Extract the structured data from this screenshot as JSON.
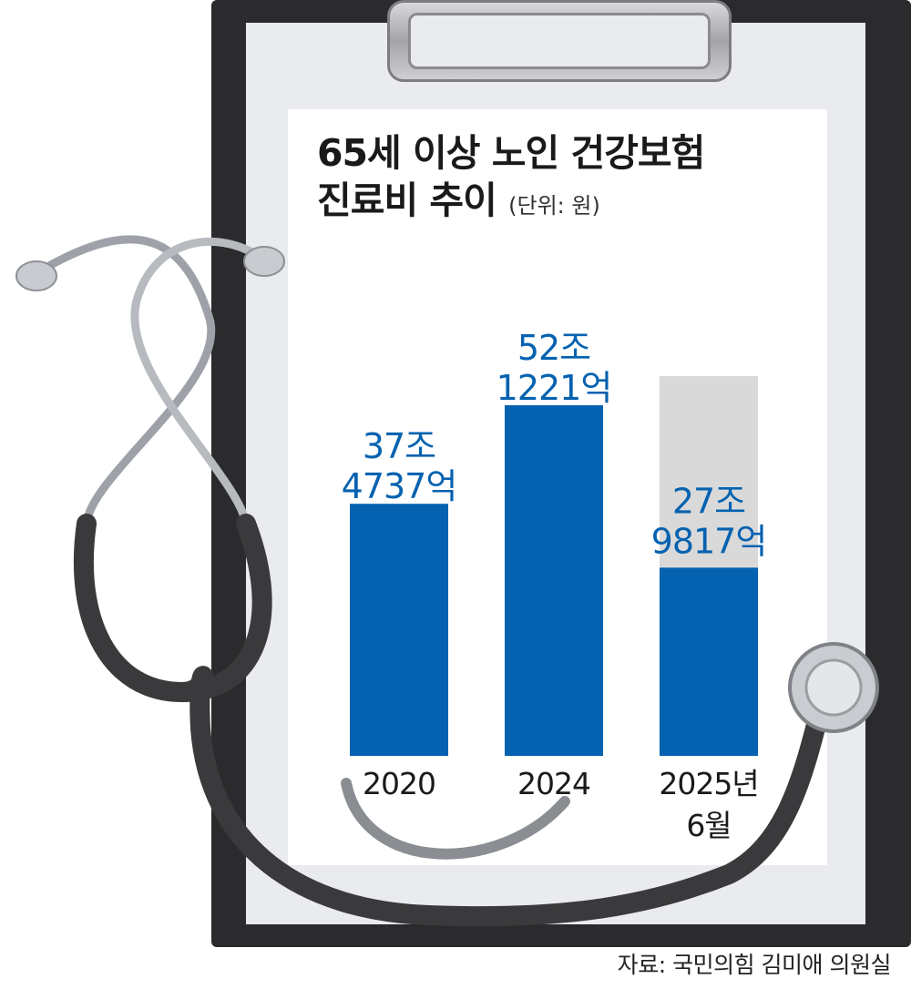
{
  "chart_data": {
    "type": "bar",
    "title_line1": "65세 이상 노인 건강보험",
    "title_line2": "진료비 추이",
    "unit": "(단위: 원)",
    "categories": [
      "2020",
      "2024",
      "2025년 6월"
    ],
    "category_lines": [
      [
        "2020"
      ],
      [
        "2024"
      ],
      [
        "2025년",
        "6월"
      ]
    ],
    "values": [
      374737,
      521221,
      279817
    ],
    "value_label_lines": [
      [
        "37조",
        "4737억"
      ],
      [
        "52조",
        "1221억"
      ],
      [
        "27조",
        "9817억"
      ]
    ],
    "value_unit": "억 원",
    "partial_year_indicator": {
      "category": "2025년 6월",
      "note": "gray background bar"
    },
    "colors": {
      "bar": "#0562b0",
      "label": "#0562b0",
      "ghost": "#d9d9d9"
    },
    "source": "자료: 국민의힘 김미애 의원실"
  }
}
